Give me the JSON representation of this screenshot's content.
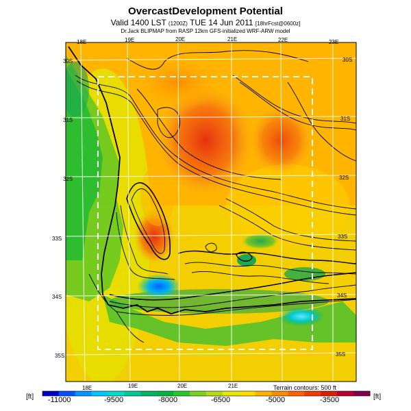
{
  "title": "OvercastDevelopment Potential",
  "subtitle_main": "Valid 1400 LST",
  "subtitle_utc": "(1200Z)",
  "subtitle_date": "TUE 14 Jun 2011",
  "subtitle_forecast": "[18hrFcst@0600z]",
  "credit": "Dr.Jack BLIPMAP from RASP 12km GFS-initialized WRF-ARW model",
  "top_lon_labels": [
    "18E",
    "19E",
    "20E",
    "21E",
    "22E",
    "23E"
  ],
  "bottom_lon_labels": [
    "18E",
    "19E",
    "20E",
    "21E"
  ],
  "left_lat_labels": [
    "30S",
    "31S",
    "32S",
    "33S",
    "34S",
    "35S"
  ],
  "right_lat_labels": [
    "30S",
    "31S",
    "32S",
    "33S",
    "34S",
    "35S"
  ],
  "terrain_note": "Terrain contours: 500 ft",
  "unit_left": "[ft]",
  "unit_right": "[ft]",
  "colorbar": {
    "labels": [
      "-11000",
      "-9500",
      "-8000",
      "-6500",
      "-5000",
      "-3500"
    ],
    "colors": [
      "#0000c8",
      "#0050ff",
      "#0096ff",
      "#00c8ff",
      "#00dcc8",
      "#00c896",
      "#00b464",
      "#00b43c",
      "#28c828",
      "#78d21e",
      "#b4dc14",
      "#e6e60a",
      "#ffdc00",
      "#ffb400",
      "#ff8c00",
      "#ff6400",
      "#f03c00",
      "#dc1e00",
      "#b40032",
      "#820050"
    ]
  },
  "legend_colors": {
    "border": "#000000",
    "bounding_box": "#ffffff",
    "grid": "#ffffff"
  }
}
